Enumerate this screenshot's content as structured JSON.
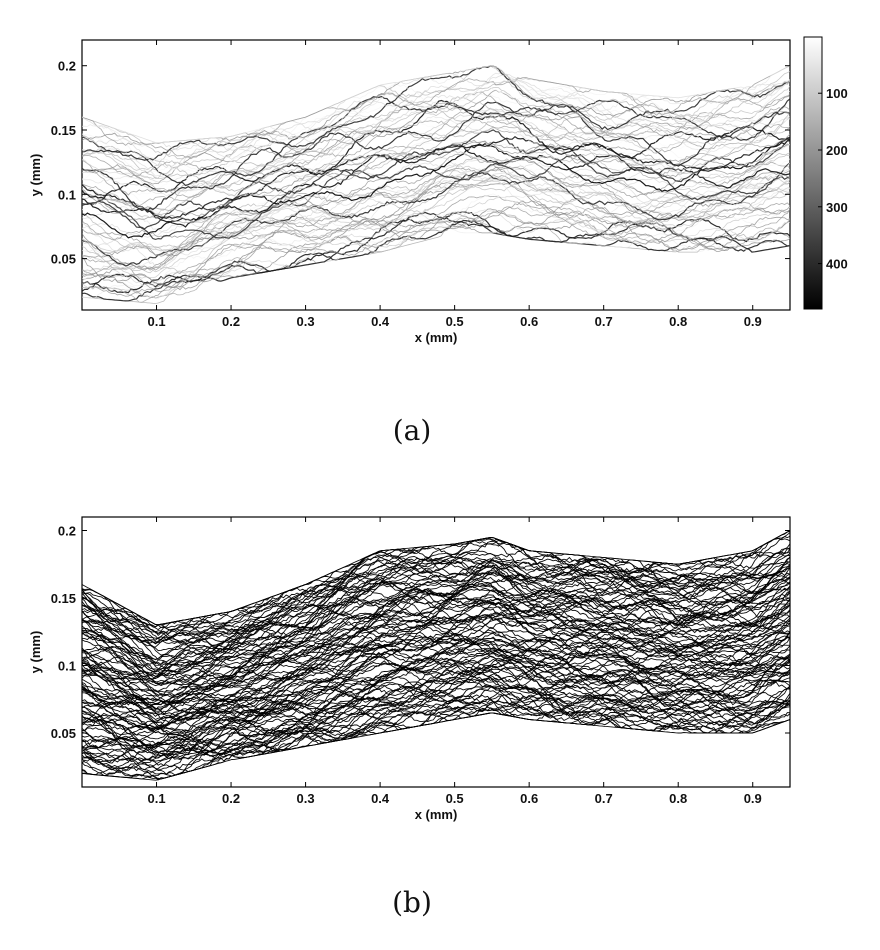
{
  "chart_data": [
    {
      "panel": "a",
      "type": "line",
      "caption": "(a)",
      "xlabel": "x (mm)",
      "ylabel": "y (mm)",
      "xlim": [
        0,
        0.95
      ],
      "ylim": [
        0.01,
        0.22
      ],
      "xticks": [
        "0.1",
        "0.2",
        "0.3",
        "0.4",
        "0.5",
        "0.6",
        "0.7",
        "0.8",
        "0.9"
      ],
      "yticks": [
        "0.05",
        "0.1",
        "0.15",
        "0.2"
      ],
      "grid": false,
      "colormap": "gray (white = low index, black = high index)",
      "colorbar": {
        "ticks": [
          "100",
          "200",
          "300",
          "400"
        ],
        "range": [
          1,
          480
        ]
      },
      "envelope_x": [
        0,
        0.1,
        0.2,
        0.3,
        0.4,
        0.5,
        0.55,
        0.6,
        0.7,
        0.8,
        0.9,
        0.95
      ],
      "envelope_upper": [
        0.16,
        0.14,
        0.145,
        0.16,
        0.185,
        0.195,
        0.2,
        0.19,
        0.18,
        0.175,
        0.185,
        0.2
      ],
      "envelope_lower": [
        0.02,
        0.015,
        0.035,
        0.045,
        0.055,
        0.07,
        0.07,
        0.065,
        0.06,
        0.055,
        0.055,
        0.06
      ]
    },
    {
      "panel": "b",
      "type": "line",
      "caption": "(b)",
      "xlabel": "x (mm)",
      "ylabel": "y (mm)",
      "xlim": [
        0,
        0.95
      ],
      "ylim": [
        0.01,
        0.21
      ],
      "xticks": [
        "0.1",
        "0.2",
        "0.3",
        "0.4",
        "0.5",
        "0.6",
        "0.7",
        "0.8",
        "0.9"
      ],
      "yticks": [
        "0.05",
        "0.1",
        "0.15",
        "0.2"
      ],
      "grid": false,
      "line_color": "#000000",
      "envelope_x": [
        0,
        0.1,
        0.2,
        0.3,
        0.4,
        0.5,
        0.55,
        0.6,
        0.7,
        0.8,
        0.9,
        0.95
      ],
      "envelope_upper": [
        0.16,
        0.13,
        0.14,
        0.16,
        0.185,
        0.19,
        0.195,
        0.185,
        0.18,
        0.175,
        0.185,
        0.2
      ],
      "envelope_lower": [
        0.02,
        0.015,
        0.03,
        0.04,
        0.05,
        0.06,
        0.065,
        0.06,
        0.055,
        0.05,
        0.05,
        0.06
      ]
    }
  ]
}
